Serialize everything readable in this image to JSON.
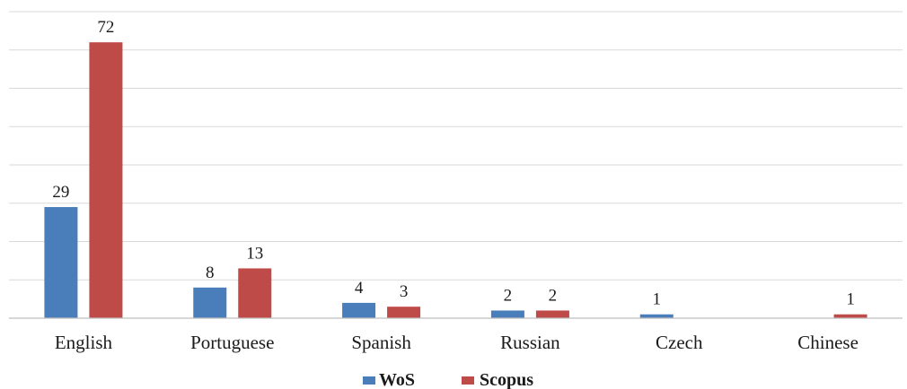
{
  "chart_data": {
    "type": "bar",
    "categories": [
      "English",
      "Portuguese",
      "Spanish",
      "Russian",
      "Czech",
      "Chinese"
    ],
    "series": [
      {
        "name": "WoS",
        "values": [
          29,
          8,
          4,
          2,
          1,
          0
        ],
        "labels": [
          "29",
          "8",
          "4",
          "2",
          "1",
          ""
        ],
        "color": "#4a7ebb"
      },
      {
        "name": "Scopus",
        "values": [
          72,
          13,
          3,
          2,
          0,
          1
        ],
        "labels": [
          "72",
          "13",
          "3",
          "2",
          "",
          "1"
        ],
        "color": "#be4b48"
      }
    ],
    "ylim": [
      0,
      80
    ],
    "y_grid_step": 10,
    "grid": true,
    "legend_position": "bottom"
  }
}
